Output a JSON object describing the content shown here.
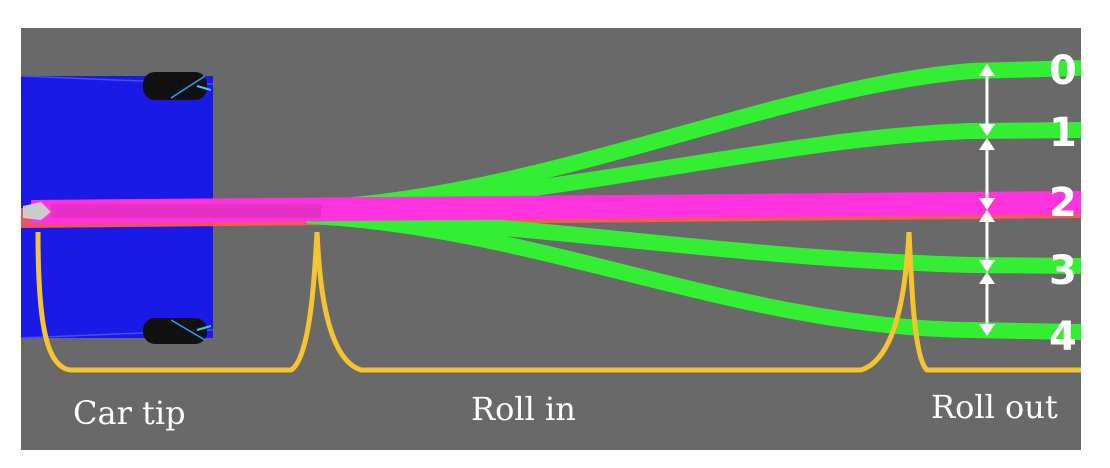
{
  "diagram": {
    "lanes": [
      {
        "label": "0",
        "color": "#33ee33"
      },
      {
        "label": "1",
        "color": "#33ee33"
      },
      {
        "label": "2",
        "color": "#ff33dd"
      },
      {
        "label": "3",
        "color": "#33ee33"
      },
      {
        "label": "4",
        "color": "#33ee33"
      }
    ],
    "sections": [
      {
        "label": "Car tip"
      },
      {
        "label": "Roll in"
      },
      {
        "label": "Roll out"
      }
    ],
    "colors": {
      "background": "#696969",
      "car_body": "#1a1ae6",
      "trajectory": "#33ee33",
      "center_line": "#ff33dd",
      "center_line_glow": "#ff5555",
      "bracket": "#f5c431",
      "arrow": "#ffffff"
    }
  }
}
